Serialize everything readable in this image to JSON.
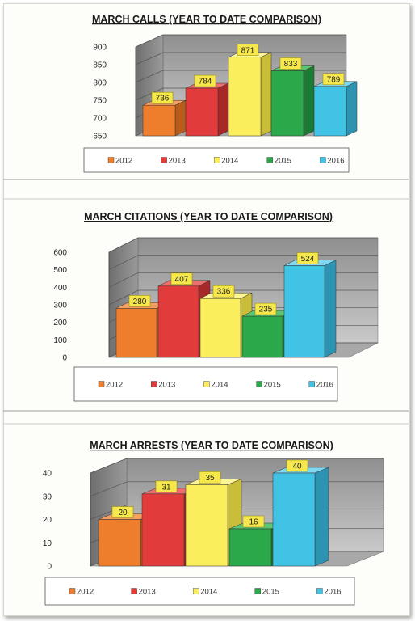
{
  "chart_data": [
    {
      "type": "bar",
      "title": "MARCH CALLS (YEAR TO DATE COMPARISON)",
      "categories": [
        "2012",
        "2013",
        "2014",
        "2015",
        "2016"
      ],
      "values": [
        736,
        784,
        871,
        833,
        789
      ],
      "ylim": [
        650,
        900
      ],
      "yticks": [
        650,
        700,
        750,
        800,
        850,
        900
      ],
      "grid": true,
      "legend": "bottom"
    },
    {
      "type": "bar",
      "title": "MARCH CITATIONS (YEAR TO DATE COMPARISON)",
      "categories": [
        "2012",
        "2013",
        "2014",
        "2015",
        "2016"
      ],
      "values": [
        280,
        407,
        336,
        235,
        524
      ],
      "ylim": [
        0,
        600
      ],
      "yticks": [
        0,
        100,
        200,
        300,
        400,
        500,
        600
      ],
      "grid": true,
      "legend": "bottom"
    },
    {
      "type": "bar",
      "title": "MARCH ARRESTS (YEAR TO DATE COMPARISON)",
      "categories": [
        "2012",
        "2013",
        "2014",
        "2015",
        "2016"
      ],
      "values": [
        20,
        31,
        35,
        16,
        40
      ],
      "ylim": [
        0,
        40
      ],
      "yticks": [
        0,
        10,
        20,
        30,
        40
      ],
      "grid": true,
      "legend": "bottom"
    }
  ],
  "colors": [
    "#ee7d2c",
    "#e23b3b",
    "#fbee5c",
    "#2aa84a",
    "#41c3e6"
  ],
  "side_colors": [
    "#b95c1c",
    "#a82828",
    "#c9bd3a",
    "#1b7a33",
    "#2c93b2"
  ],
  "top_colors": [
    "#f4a063",
    "#ec6e6e",
    "#fdf59a",
    "#5cc574",
    "#7fd8f0"
  ],
  "label_box_color": "#f6e84a"
}
